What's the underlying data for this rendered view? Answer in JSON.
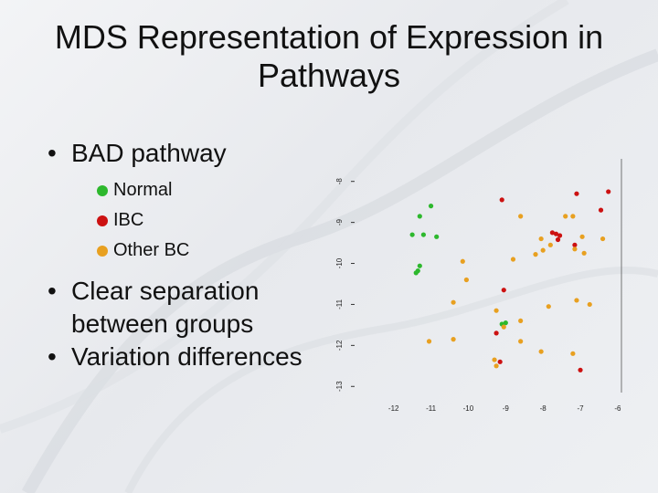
{
  "title": "MDS Representation of Expression in Pathways",
  "bullets": [
    {
      "text": "BAD pathway"
    },
    {
      "text": "Clear separation between groups"
    },
    {
      "text": "Variation differences"
    }
  ],
  "legend": [
    {
      "label": "Normal",
      "color": "#2db82d"
    },
    {
      "label": "IBC",
      "color": "#cc1111"
    },
    {
      "label": "Other BC",
      "color": "#e8a020"
    }
  ],
  "chart_data": {
    "type": "scatter",
    "xlim": [
      -12.8,
      -5.9
    ],
    "ylim": [
      -13.15,
      -7.45
    ],
    "x_ticks": [
      -12,
      -11,
      -10,
      -9,
      -8,
      -7,
      -6
    ],
    "x_tick_labels": [
      "-12",
      "-11",
      "-10",
      "-9",
      "-8",
      "-7",
      "-6"
    ],
    "y_ticks": [
      -8,
      -9,
      -10,
      -11,
      -12,
      -13
    ],
    "y_tick_labels": [
      "-8",
      "-9",
      "-10",
      "-11",
      "-12",
      "-13"
    ],
    "series": [
      {
        "name": "Normal",
        "color": "#2db82d",
        "points": [
          [
            -11.0,
            -8.6
          ],
          [
            -11.3,
            -8.85
          ],
          [
            -11.5,
            -9.3
          ],
          [
            -11.2,
            -9.3
          ],
          [
            -10.85,
            -9.35
          ],
          [
            -11.3,
            -10.06
          ],
          [
            -11.35,
            -10.18
          ],
          [
            -11.4,
            -10.23
          ],
          [
            -9.0,
            -11.45
          ],
          [
            -9.1,
            -11.48
          ]
        ]
      },
      {
        "name": "IBC",
        "color": "#cc1111",
        "points": [
          [
            -9.1,
            -8.45
          ],
          [
            -7.1,
            -8.3
          ],
          [
            -6.25,
            -8.25
          ],
          [
            -6.45,
            -8.7
          ],
          [
            -7.75,
            -9.25
          ],
          [
            -7.65,
            -9.28
          ],
          [
            -7.55,
            -9.32
          ],
          [
            -7.6,
            -9.42
          ],
          [
            -7.15,
            -9.55
          ],
          [
            -9.05,
            -10.65
          ],
          [
            -9.25,
            -11.7
          ],
          [
            -9.15,
            -12.4
          ],
          [
            -7.0,
            -12.6
          ]
        ]
      },
      {
        "name": "Other BC",
        "color": "#e8a020",
        "points": [
          [
            -8.6,
            -8.85
          ],
          [
            -7.4,
            -8.85
          ],
          [
            -7.2,
            -8.85
          ],
          [
            -8.05,
            -9.4
          ],
          [
            -6.95,
            -9.35
          ],
          [
            -6.4,
            -9.4
          ],
          [
            -7.8,
            -9.55
          ],
          [
            -8.0,
            -9.68
          ],
          [
            -7.15,
            -9.65
          ],
          [
            -6.9,
            -9.75
          ],
          [
            -8.2,
            -9.78
          ],
          [
            -8.8,
            -9.9
          ],
          [
            -10.15,
            -9.95
          ],
          [
            -10.05,
            -10.4
          ],
          [
            -10.4,
            -10.95
          ],
          [
            -7.1,
            -10.9
          ],
          [
            -6.75,
            -11.0
          ],
          [
            -7.85,
            -11.05
          ],
          [
            -9.25,
            -11.15
          ],
          [
            -8.6,
            -11.4
          ],
          [
            -9.05,
            -11.55
          ],
          [
            -10.4,
            -11.85
          ],
          [
            -8.6,
            -11.9
          ],
          [
            -9.3,
            -12.35
          ],
          [
            -8.05,
            -12.15
          ],
          [
            -7.2,
            -12.2
          ],
          [
            -9.25,
            -12.5
          ],
          [
            -11.05,
            -11.9
          ]
        ]
      }
    ]
  }
}
